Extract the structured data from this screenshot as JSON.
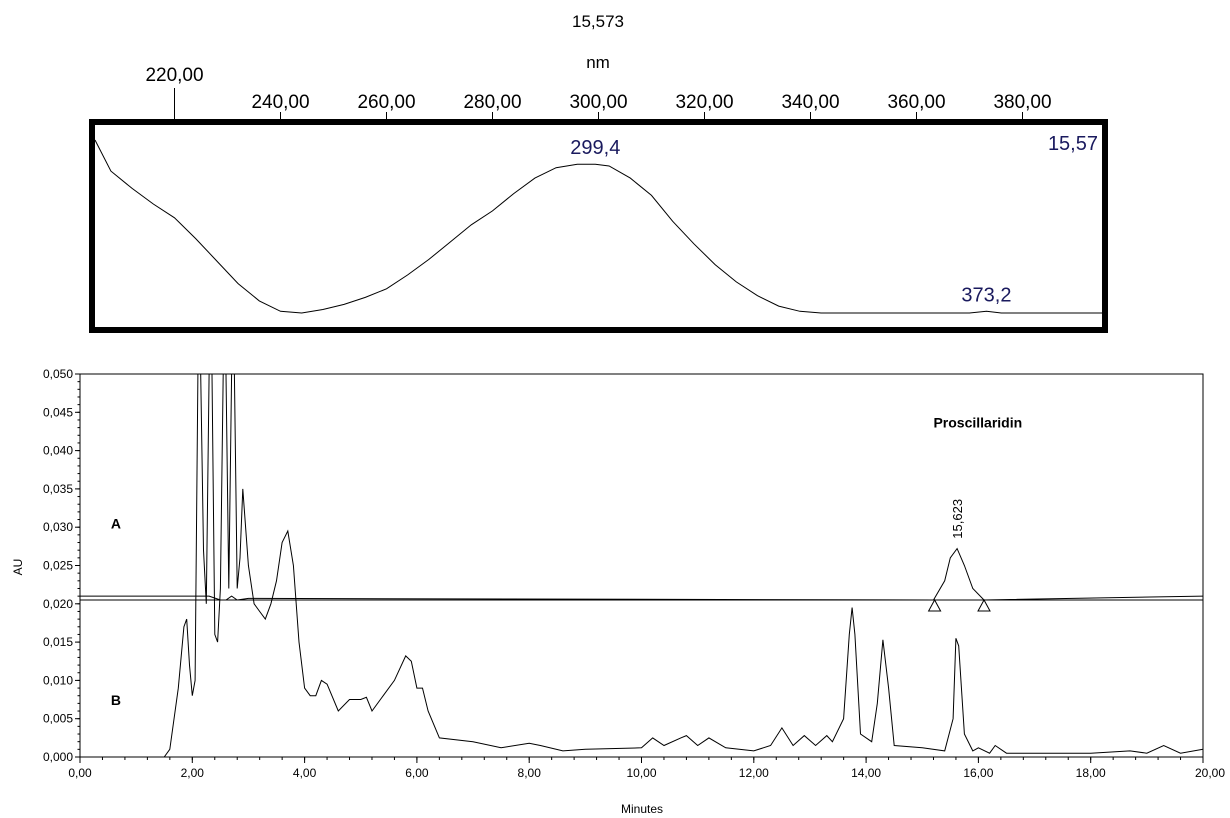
{
  "chart_data": [
    {
      "type": "line",
      "title": "15,573",
      "xlabel": "nm",
      "xlim": [
        205,
        395
      ],
      "ylim": [
        0,
        1
      ],
      "x_ticks": [
        220,
        240,
        260,
        280,
        300,
        320,
        340,
        360,
        380
      ],
      "x_tick_labels": [
        "220,00",
        "240,00",
        "260,00",
        "280,00",
        "300,00",
        "320,00",
        "340,00",
        "360,00",
        "380,00"
      ],
      "corner_label": "15,57",
      "series": [
        {
          "x": [
            205,
            208,
            212,
            216,
            220,
            224,
            228,
            232,
            236,
            240,
            244,
            248,
            252,
            256,
            260,
            264,
            268,
            272,
            276,
            280,
            284,
            288,
            292,
            296,
            299.4,
            302,
            306,
            310,
            314,
            318,
            322,
            326,
            330,
            334,
            338,
            342,
            346,
            350,
            355,
            360,
            365,
            370,
            373.2,
            376,
            380,
            385,
            390,
            395
          ],
          "y": [
            1.0,
            0.82,
            0.72,
            0.63,
            0.55,
            0.43,
            0.3,
            0.17,
            0.07,
            0.01,
            0.0,
            0.02,
            0.05,
            0.09,
            0.14,
            0.22,
            0.31,
            0.41,
            0.51,
            0.59,
            0.69,
            0.78,
            0.84,
            0.86,
            0.86,
            0.85,
            0.78,
            0.68,
            0.53,
            0.4,
            0.28,
            0.18,
            0.1,
            0.04,
            0.01,
            0.0,
            0.0,
            0.0,
            0.0,
            0.0,
            0.0,
            0.0,
            0.01,
            0.0,
            0.0,
            0.0,
            0.0,
            0.0
          ]
        }
      ],
      "annotations": [
        {
          "x": 299.4,
          "text": "299,4"
        },
        {
          "x": 373.2,
          "text": "373,2"
        }
      ]
    },
    {
      "type": "line",
      "xlabel": "Minutes",
      "ylabel": "AU",
      "xlim": [
        0,
        20
      ],
      "ylim": [
        0,
        0.05
      ],
      "x_ticks": [
        0,
        2,
        4,
        6,
        8,
        10,
        12,
        14,
        16,
        18,
        20
      ],
      "x_tick_labels": [
        "0,00",
        "2,00",
        "4,00",
        "6,00",
        "8,00",
        "10,00",
        "12,00",
        "14,00",
        "16,00",
        "18,00",
        "20,00"
      ],
      "y_ticks": [
        0,
        0.005,
        0.01,
        0.015,
        0.02,
        0.025,
        0.03,
        0.035,
        0.04,
        0.045,
        0.05
      ],
      "y_tick_labels": [
        "0,000",
        "0,005",
        "0,010",
        "0,015",
        "0,020",
        "0,025",
        "0,030",
        "0,035",
        "0,040",
        "0,045",
        "0,050"
      ],
      "trace_labels": [
        {
          "text": "A",
          "x": 0.55,
          "y": 0.0298
        },
        {
          "text": "B",
          "x": 0.55,
          "y": 0.0068
        }
      ],
      "compound_label": {
        "text": "Proscillaridin",
        "x": 15.2,
        "y": 0.043
      },
      "peak_label": {
        "x": 15.62,
        "y": 0.0285,
        "text": "15,623"
      },
      "baseline": {
        "x0": 0,
        "x1": 20,
        "y": 0.0205
      },
      "peak_markers": [
        {
          "x": 15.22,
          "y": 0.0205
        },
        {
          "x": 16.1,
          "y": 0.0205
        }
      ],
      "series": [
        {
          "label": "A",
          "x": [
            0,
            2.0,
            2.1,
            2.15,
            2.2,
            2.3,
            2.5,
            2.6,
            2.7,
            2.8,
            3.0,
            15.2,
            15.4,
            15.5,
            15.62,
            15.75,
            15.9,
            16.1,
            20
          ],
          "y": [
            0.021,
            0.021,
            0.021,
            0.021,
            0.021,
            0.021,
            0.0205,
            0.0205,
            0.021,
            0.0205,
            0.0207,
            0.0205,
            0.023,
            0.026,
            0.0272,
            0.025,
            0.022,
            0.0205,
            0.021
          ]
        },
        {
          "label": "B",
          "x": [
            0,
            1.5,
            1.6,
            1.75,
            1.85,
            1.9,
            1.95,
            2.0,
            2.05,
            2.1,
            2.15,
            2.2,
            2.25,
            2.3,
            2.35,
            2.4,
            2.45,
            2.5,
            2.55,
            2.6,
            2.65,
            2.7,
            2.75,
            2.8,
            2.85,
            2.9,
            2.95,
            3.0,
            3.1,
            3.2,
            3.3,
            3.4,
            3.5,
            3.6,
            3.7,
            3.8,
            3.9,
            4.0,
            4.1,
            4.2,
            4.3,
            4.4,
            4.6,
            4.8,
            5.0,
            5.1,
            5.2,
            5.4,
            5.6,
            5.8,
            5.9,
            6.0,
            6.1,
            6.2,
            6.4,
            7.0,
            7.5,
            8.0,
            8.2,
            8.6,
            9.0,
            10.0,
            10.2,
            10.4,
            10.7,
            10.8,
            11.0,
            11.2,
            11.5,
            12.0,
            12.3,
            12.5,
            12.7,
            12.9,
            13.1,
            13.3,
            13.4,
            13.6,
            13.7,
            13.75,
            13.8,
            13.9,
            14.1,
            14.2,
            14.3,
            14.4,
            14.5,
            15.0,
            15.4,
            15.55,
            15.6,
            15.65,
            15.75,
            15.9,
            16.0,
            16.2,
            16.3,
            16.5,
            17.0,
            18.0,
            18.7,
            19.0,
            19.3,
            19.6,
            20.0
          ],
          "y": [
            0.0,
            0.0,
            0.001,
            0.009,
            0.017,
            0.018,
            0.012,
            0.008,
            0.01,
            0.06,
            0.06,
            0.027,
            0.02,
            0.06,
            0.06,
            0.016,
            0.015,
            0.022,
            0.06,
            0.06,
            0.022,
            0.06,
            0.06,
            0.022,
            0.026,
            0.035,
            0.03,
            0.025,
            0.02,
            0.019,
            0.018,
            0.02,
            0.023,
            0.028,
            0.0295,
            0.025,
            0.015,
            0.009,
            0.008,
            0.008,
            0.01,
            0.0095,
            0.006,
            0.0075,
            0.0075,
            0.0078,
            0.006,
            0.008,
            0.01,
            0.0132,
            0.0125,
            0.009,
            0.009,
            0.006,
            0.0025,
            0.002,
            0.0012,
            0.0018,
            0.0015,
            0.0008,
            0.001,
            0.0012,
            0.0025,
            0.0015,
            0.0025,
            0.0028,
            0.0015,
            0.0025,
            0.0012,
            0.0008,
            0.0015,
            0.0038,
            0.0015,
            0.0028,
            0.0015,
            0.0028,
            0.002,
            0.005,
            0.016,
            0.0195,
            0.016,
            0.003,
            0.002,
            0.007,
            0.0153,
            0.009,
            0.0015,
            0.0012,
            0.0008,
            0.005,
            0.0155,
            0.0145,
            0.003,
            0.0008,
            0.0012,
            0.0005,
            0.0015,
            0.0005,
            0.0005,
            0.0005,
            0.0008,
            0.0005,
            0.0015,
            0.0005,
            0.001
          ]
        }
      ]
    }
  ]
}
